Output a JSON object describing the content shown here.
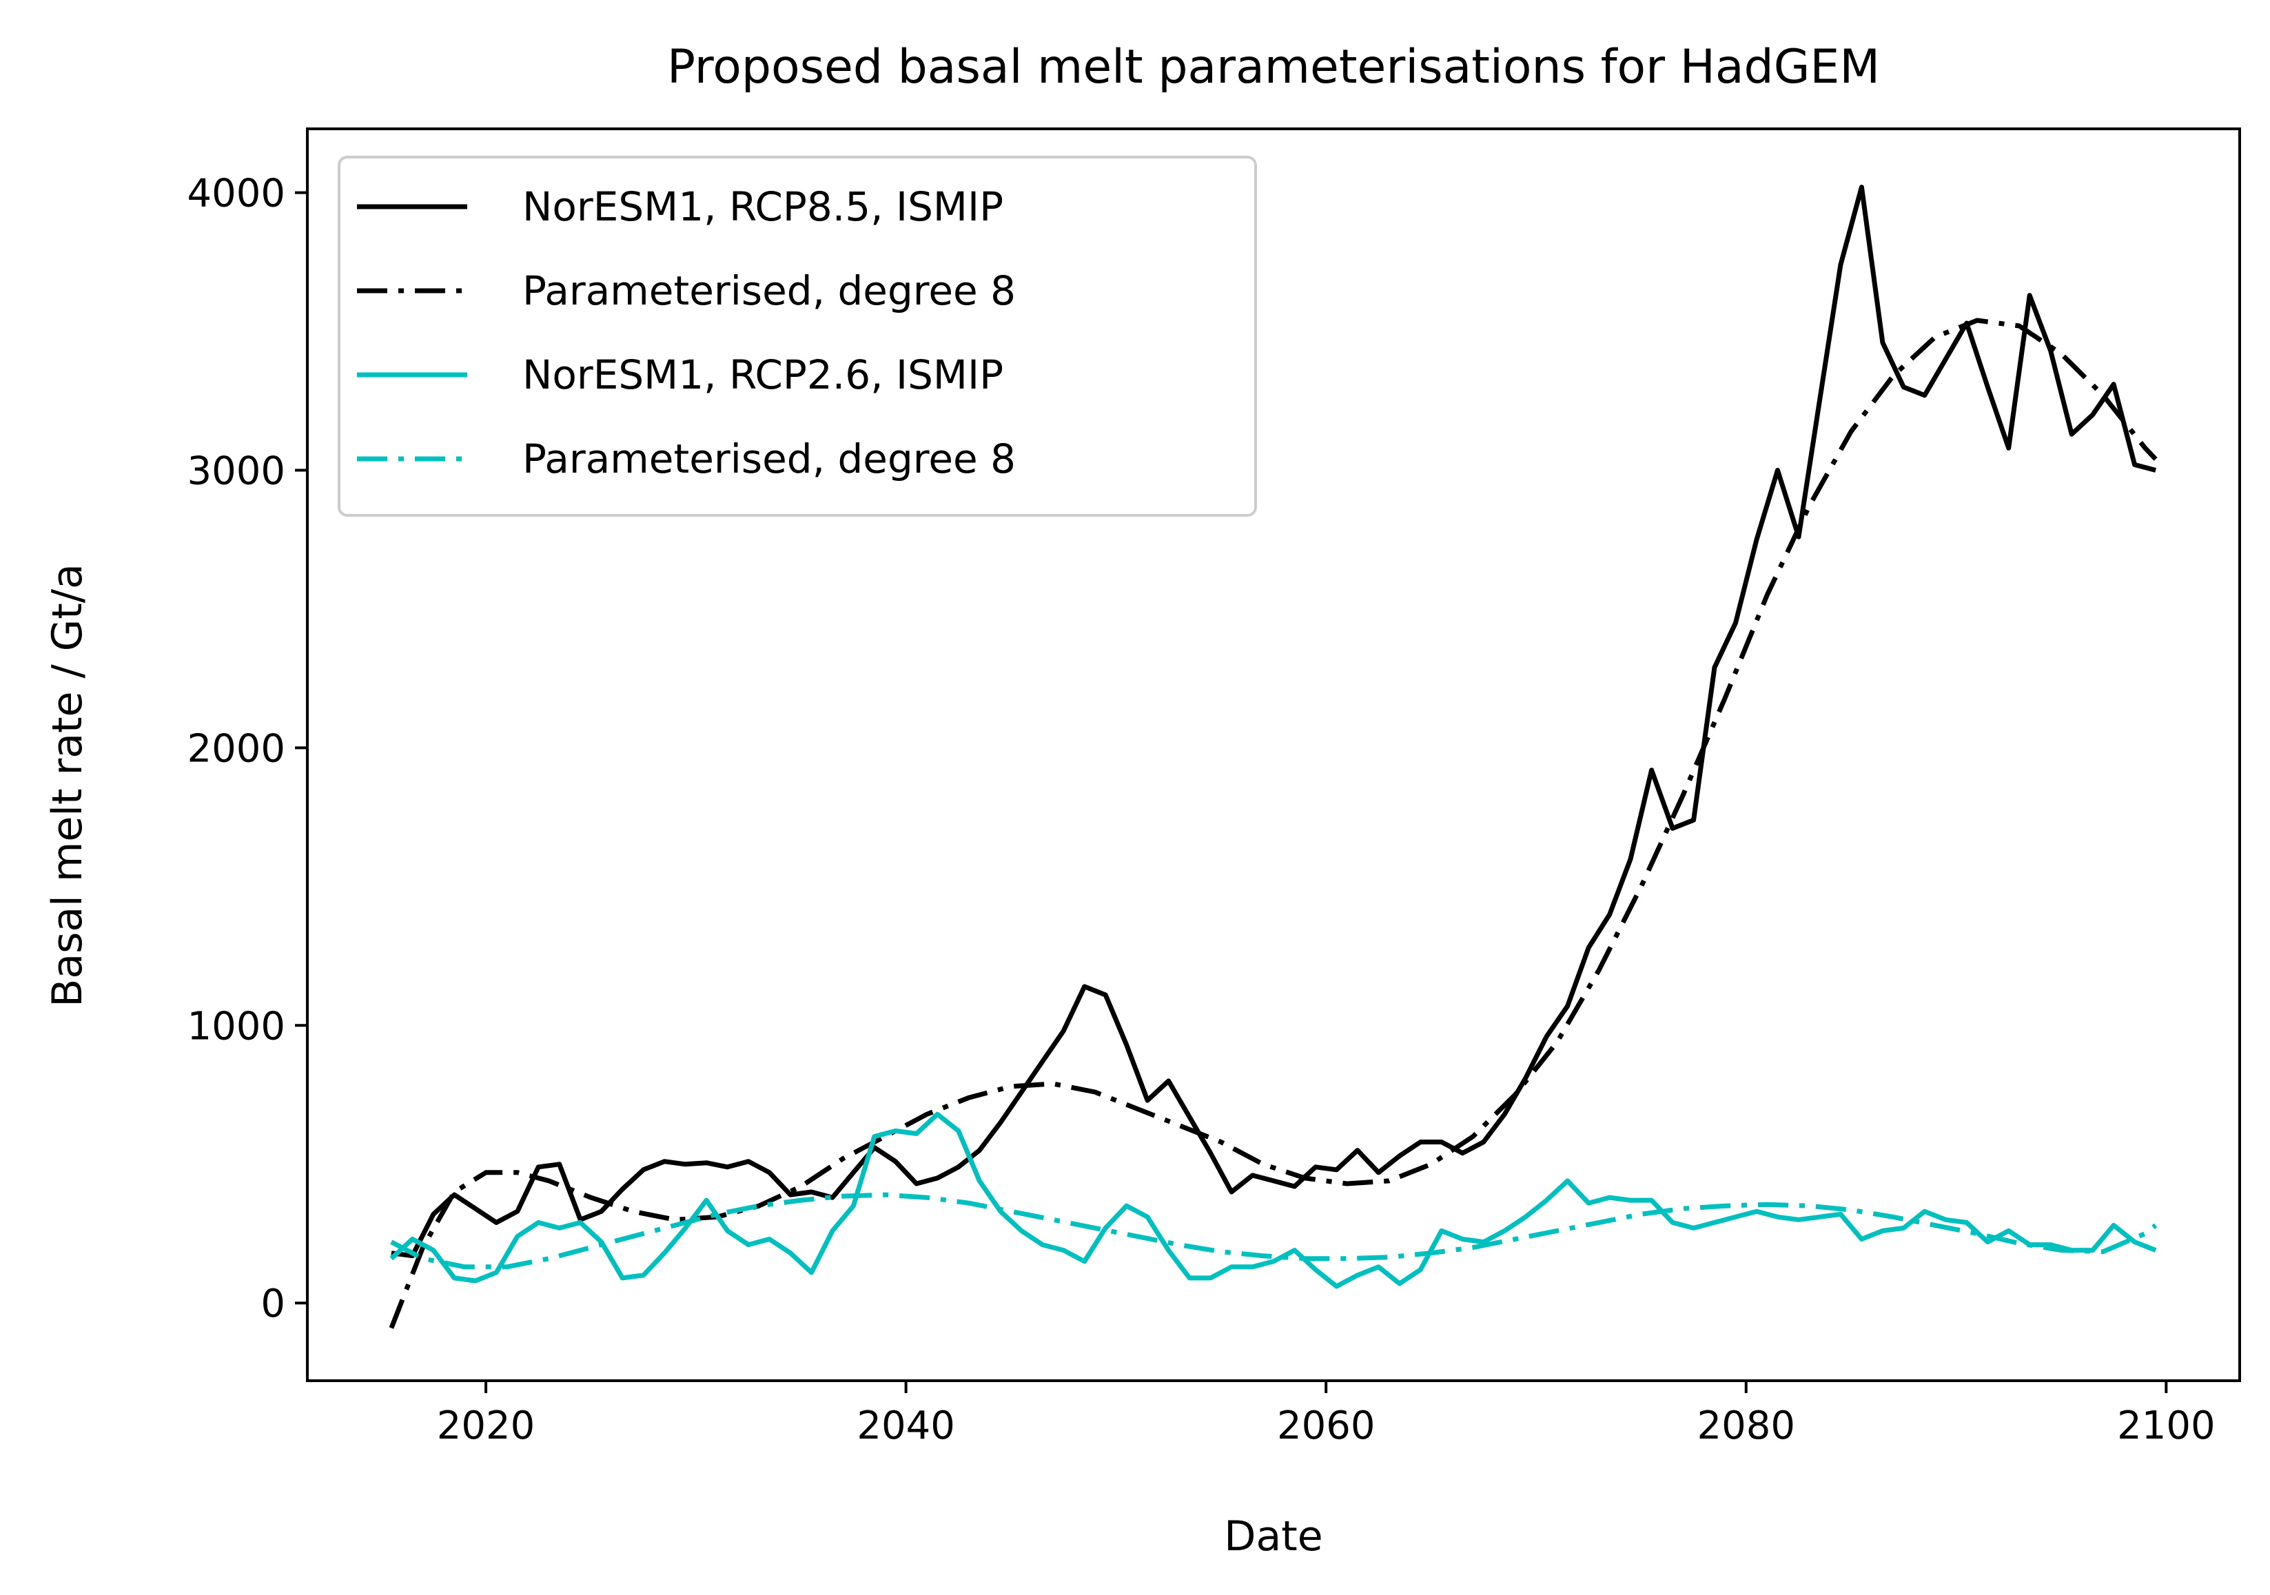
{
  "chart_data": {
    "type": "line",
    "title": "Proposed basal melt parameterisations for HadGEM",
    "xlabel": "Date",
    "ylabel": "Basal melt rate / Gt/a",
    "xlim": [
      2011.5,
      2103.5
    ],
    "ylim": [
      -280,
      4230
    ],
    "xticks": [
      2020,
      2040,
      2060,
      2080,
      2100
    ],
    "xtick_labels": [
      "2020",
      "2040",
      "2060",
      "2080",
      "2100"
    ],
    "yticks": [
      0,
      1000,
      2000,
      3000,
      4000
    ],
    "ytick_labels": [
      "0",
      "1000",
      "2000",
      "3000",
      "4000"
    ],
    "grid": false,
    "legend_position": "upper-left",
    "series": [
      {
        "name": "NorESM1, RCP8.5, ISMIP",
        "color": "#000000",
        "style": "solid",
        "x": [
          2015.5,
          2016.5,
          2017.5,
          2018.5,
          2019.5,
          2020.5,
          2021.5,
          2022.5,
          2023.5,
          2024.5,
          2025.5,
          2026.5,
          2027.5,
          2028.5,
          2029.5,
          2030.5,
          2031.5,
          2032.5,
          2033.5,
          2034.5,
          2035.5,
          2036.5,
          2037.5,
          2038.5,
          2039.5,
          2040.5,
          2041.5,
          2042.5,
          2043.5,
          2044.5,
          2045.5,
          2046.5,
          2047.5,
          2048.5,
          2049.5,
          2050.5,
          2051.5,
          2052.5,
          2053.5,
          2054.5,
          2055.5,
          2056.5,
          2057.5,
          2058.5,
          2059.5,
          2060.5,
          2061.5,
          2062.5,
          2063.5,
          2064.5,
          2065.5,
          2066.5,
          2067.5,
          2068.5,
          2069.5,
          2070.5,
          2071.5,
          2072.5,
          2073.5,
          2074.5,
          2075.5,
          2076.5,
          2077.5,
          2078.5,
          2079.5,
          2080.5,
          2081.5,
          2082.5,
          2083.5,
          2084.5,
          2085.5,
          2086.5,
          2087.5,
          2088.5,
          2089.5,
          2090.5,
          2091.5,
          2092.5,
          2093.5,
          2094.5,
          2095.5,
          2096.5,
          2097.5,
          2098.5,
          2099.5
        ],
        "y": [
          180,
          170,
          320,
          390,
          340,
          290,
          330,
          490,
          500,
          300,
          330,
          410,
          480,
          510,
          500,
          505,
          490,
          510,
          470,
          390,
          400,
          380,
          470,
          560,
          510,
          430,
          450,
          490,
          550,
          650,
          760,
          870,
          980,
          1140,
          1110,
          930,
          730,
          800,
          670,
          540,
          400,
          460,
          440,
          420,
          490,
          480,
          550,
          470,
          530,
          580,
          580,
          540,
          580,
          680,
          810,
          960,
          1070,
          1280,
          1400,
          1600,
          1920,
          1710,
          1740,
          2290,
          2450,
          2750,
          3000,
          2760,
          3250,
          3740,
          4020,
          3460,
          3300,
          3270,
          3400,
          3530,
          3300,
          3080,
          3630,
          3430,
          3130,
          3200,
          3310,
          3020,
          3000
        ],
        "x_end_override": null
      },
      {
        "name": "Parameterised, degree 8",
        "color": "#000000",
        "style": "dashdot",
        "x": [
          2015.5,
          2017,
          2018.5,
          2020,
          2021.5,
          2023,
          2025,
          2027,
          2029,
          2031,
          2033,
          2035,
          2037,
          2039,
          2041,
          2043,
          2045,
          2047,
          2049,
          2051,
          2053,
          2055,
          2057,
          2059,
          2061,
          2063,
          2065,
          2067,
          2069,
          2071,
          2073,
          2075,
          2077,
          2079,
          2081,
          2083,
          2085,
          2087,
          2089,
          2091,
          2093,
          2095,
          2097,
          2099,
          2099.5
        ],
        "y": [
          -90,
          200,
          400,
          470,
          470,
          440,
          380,
          330,
          300,
          310,
          350,
          420,
          520,
          600,
          680,
          740,
          780,
          790,
          760,
          700,
          640,
          580,
          500,
          450,
          430,
          440,
          500,
          600,
          750,
          940,
          1200,
          1500,
          1830,
          2180,
          2550,
          2870,
          3140,
          3340,
          3480,
          3540,
          3520,
          3420,
          3270,
          3080,
          3040
        ]
      },
      {
        "name": "NorESM1, RCP2.6, ISMIP",
        "color": "#00bfbf",
        "style": "solid",
        "x": [
          2015.5,
          2016.5,
          2017.5,
          2018.5,
          2019.5,
          2020.5,
          2021.5,
          2022.5,
          2023.5,
          2024.5,
          2025.5,
          2026.5,
          2027.5,
          2028.5,
          2029.5,
          2030.5,
          2031.5,
          2032.5,
          2033.5,
          2034.5,
          2035.5,
          2036.5,
          2037.5,
          2038.5,
          2039.5,
          2040.5,
          2041.5,
          2042.5,
          2043.5,
          2044.5,
          2045.5,
          2046.5,
          2047.5,
          2048.5,
          2049.5,
          2050.5,
          2051.5,
          2052.5,
          2053.5,
          2054.5,
          2055.5,
          2056.5,
          2057.5,
          2058.5,
          2059.5,
          2060.5,
          2061.5,
          2062.5,
          2063.5,
          2064.5,
          2065.5,
          2066.5,
          2067.5,
          2068.5,
          2069.5,
          2070.5,
          2071.5,
          2072.5,
          2073.5,
          2074.5,
          2075.5,
          2076.5,
          2077.5,
          2078.5,
          2079.5,
          2080.5,
          2081.5,
          2082.5,
          2083.5,
          2084.5,
          2085.5,
          2086.5,
          2087.5,
          2088.5,
          2089.5,
          2090.5,
          2091.5,
          2092.5,
          2093.5,
          2094.5,
          2095.5,
          2096.5,
          2097.5,
          2098.5,
          2099.5
        ],
        "y": [
          160,
          230,
          190,
          90,
          80,
          110,
          240,
          290,
          270,
          290,
          220,
          90,
          100,
          180,
          270,
          370,
          260,
          210,
          230,
          180,
          110,
          260,
          350,
          600,
          620,
          610,
          680,
          620,
          440,
          330,
          260,
          210,
          190,
          150,
          270,
          350,
          310,
          190,
          90,
          90,
          130,
          130,
          150,
          190,
          120,
          60,
          100,
          130,
          70,
          120,
          260,
          230,
          220,
          260,
          310,
          370,
          440,
          360,
          380,
          370,
          370,
          290,
          270,
          290,
          310,
          330,
          310,
          300,
          310,
          320,
          230,
          260,
          270,
          330,
          300,
          290,
          220,
          260,
          210,
          210,
          190,
          190,
          280,
          220,
          190
        ],
        "x_end_override": null
      },
      {
        "name": "Parameterised, degree 8",
        "color": "#00bfbf",
        "style": "dashdot",
        "x": [
          2015.5,
          2017,
          2019,
          2021,
          2023,
          2025,
          2027,
          2029,
          2031,
          2033,
          2035,
          2037,
          2039,
          2041,
          2043,
          2045,
          2047,
          2049,
          2051,
          2053,
          2055,
          2057,
          2059,
          2061,
          2063,
          2065,
          2067,
          2069,
          2071,
          2073,
          2075,
          2077,
          2079,
          2081,
          2083,
          2085,
          2087,
          2089,
          2091,
          2093,
          2095,
          2097,
          2099,
          2099.5
        ],
        "y": [
          220,
          160,
          130,
          130,
          160,
          200,
          240,
          280,
          320,
          350,
          370,
          385,
          390,
          380,
          360,
          330,
          300,
          270,
          240,
          210,
          185,
          170,
          160,
          160,
          165,
          180,
          200,
          230,
          260,
          290,
          320,
          340,
          350,
          355,
          350,
          335,
          310,
          280,
          250,
          215,
          190,
          185,
          250,
          280
        ]
      }
    ]
  }
}
